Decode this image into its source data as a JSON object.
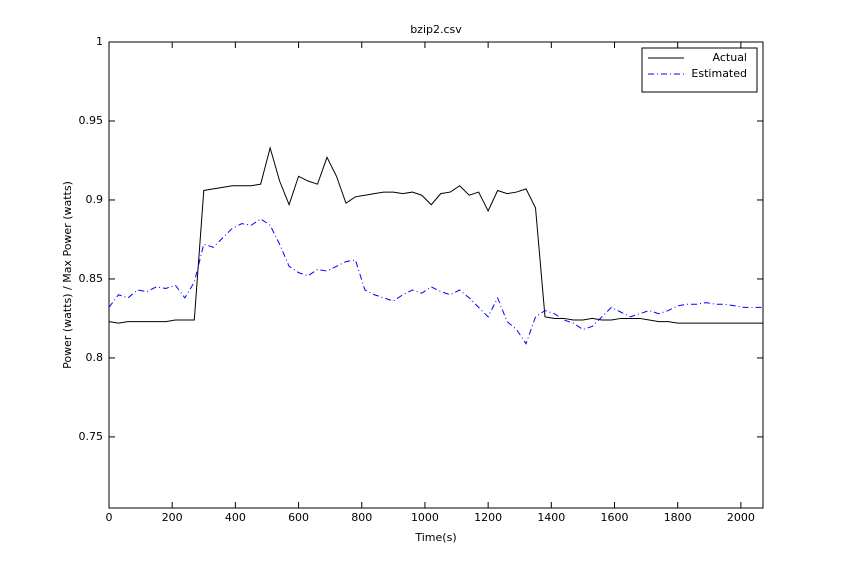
{
  "chart_data": {
    "type": "line",
    "title": "bzip2.csv",
    "x_label": "Time(s)",
    "y_label": "Power (watts) / Max Power (watts)",
    "x": [
      0,
      30,
      60,
      90,
      120,
      150,
      180,
      210,
      240,
      270,
      300,
      330,
      360,
      390,
      420,
      450,
      480,
      510,
      540,
      570,
      600,
      630,
      660,
      690,
      720,
      750,
      780,
      810,
      840,
      870,
      900,
      930,
      960,
      990,
      1020,
      1050,
      1080,
      1110,
      1140,
      1170,
      1200,
      1230,
      1260,
      1290,
      1320,
      1350,
      1380,
      1410,
      1440,
      1470,
      1500,
      1530,
      1560,
      1590,
      1620,
      1650,
      1680,
      1710,
      1740,
      1770,
      1800,
      1830,
      1860,
      1890,
      1920,
      1950,
      1980,
      2010,
      2040,
      2070
    ],
    "series": [
      {
        "name": "Actual",
        "color": "#000000",
        "dash": "solid",
        "values": [
          0.823,
          0.822,
          0.823,
          0.823,
          0.823,
          0.823,
          0.823,
          0.824,
          0.824,
          0.824,
          0.906,
          0.907,
          0.908,
          0.909,
          0.909,
          0.909,
          0.91,
          0.933,
          0.912,
          0.897,
          0.915,
          0.912,
          0.91,
          0.927,
          0.915,
          0.898,
          0.902,
          0.903,
          0.904,
          0.905,
          0.905,
          0.904,
          0.905,
          0.903,
          0.897,
          0.904,
          0.905,
          0.909,
          0.903,
          0.905,
          0.893,
          0.906,
          0.904,
          0.905,
          0.907,
          0.895,
          0.826,
          0.825,
          0.825,
          0.824,
          0.824,
          0.825,
          0.824,
          0.824,
          0.825,
          0.825,
          0.825,
          0.824,
          0.823,
          0.823,
          0.822,
          0.822,
          0.822,
          0.822,
          0.822,
          0.822,
          0.822,
          0.822,
          0.822,
          0.822
        ]
      },
      {
        "name": "Estimated",
        "color": "#0000ff",
        "dash": "dashdot",
        "values": [
          0.832,
          0.84,
          0.838,
          0.843,
          0.842,
          0.845,
          0.844,
          0.846,
          0.838,
          0.848,
          0.872,
          0.87,
          0.876,
          0.882,
          0.885,
          0.884,
          0.888,
          0.884,
          0.872,
          0.858,
          0.854,
          0.852,
          0.856,
          0.855,
          0.858,
          0.861,
          0.862,
          0.843,
          0.84,
          0.838,
          0.836,
          0.84,
          0.843,
          0.841,
          0.845,
          0.842,
          0.84,
          0.843,
          0.838,
          0.832,
          0.826,
          0.838,
          0.823,
          0.818,
          0.809,
          0.826,
          0.83,
          0.828,
          0.824,
          0.822,
          0.818,
          0.82,
          0.826,
          0.832,
          0.829,
          0.826,
          0.828,
          0.83,
          0.828,
          0.83,
          0.833,
          0.834,
          0.834,
          0.835,
          0.834,
          0.834,
          0.833,
          0.832,
          0.832,
          0.832
        ]
      }
    ],
    "xlim": [
      0,
      2070
    ],
    "ylim": [
      0.705,
      1
    ],
    "xticks": [
      0,
      200,
      400,
      600,
      800,
      1000,
      1200,
      1400,
      1600,
      1800,
      2000
    ],
    "yticks": [
      0.75,
      0.8,
      0.85,
      0.9,
      0.95,
      1
    ],
    "grid": false,
    "legend": "northeast"
  }
}
